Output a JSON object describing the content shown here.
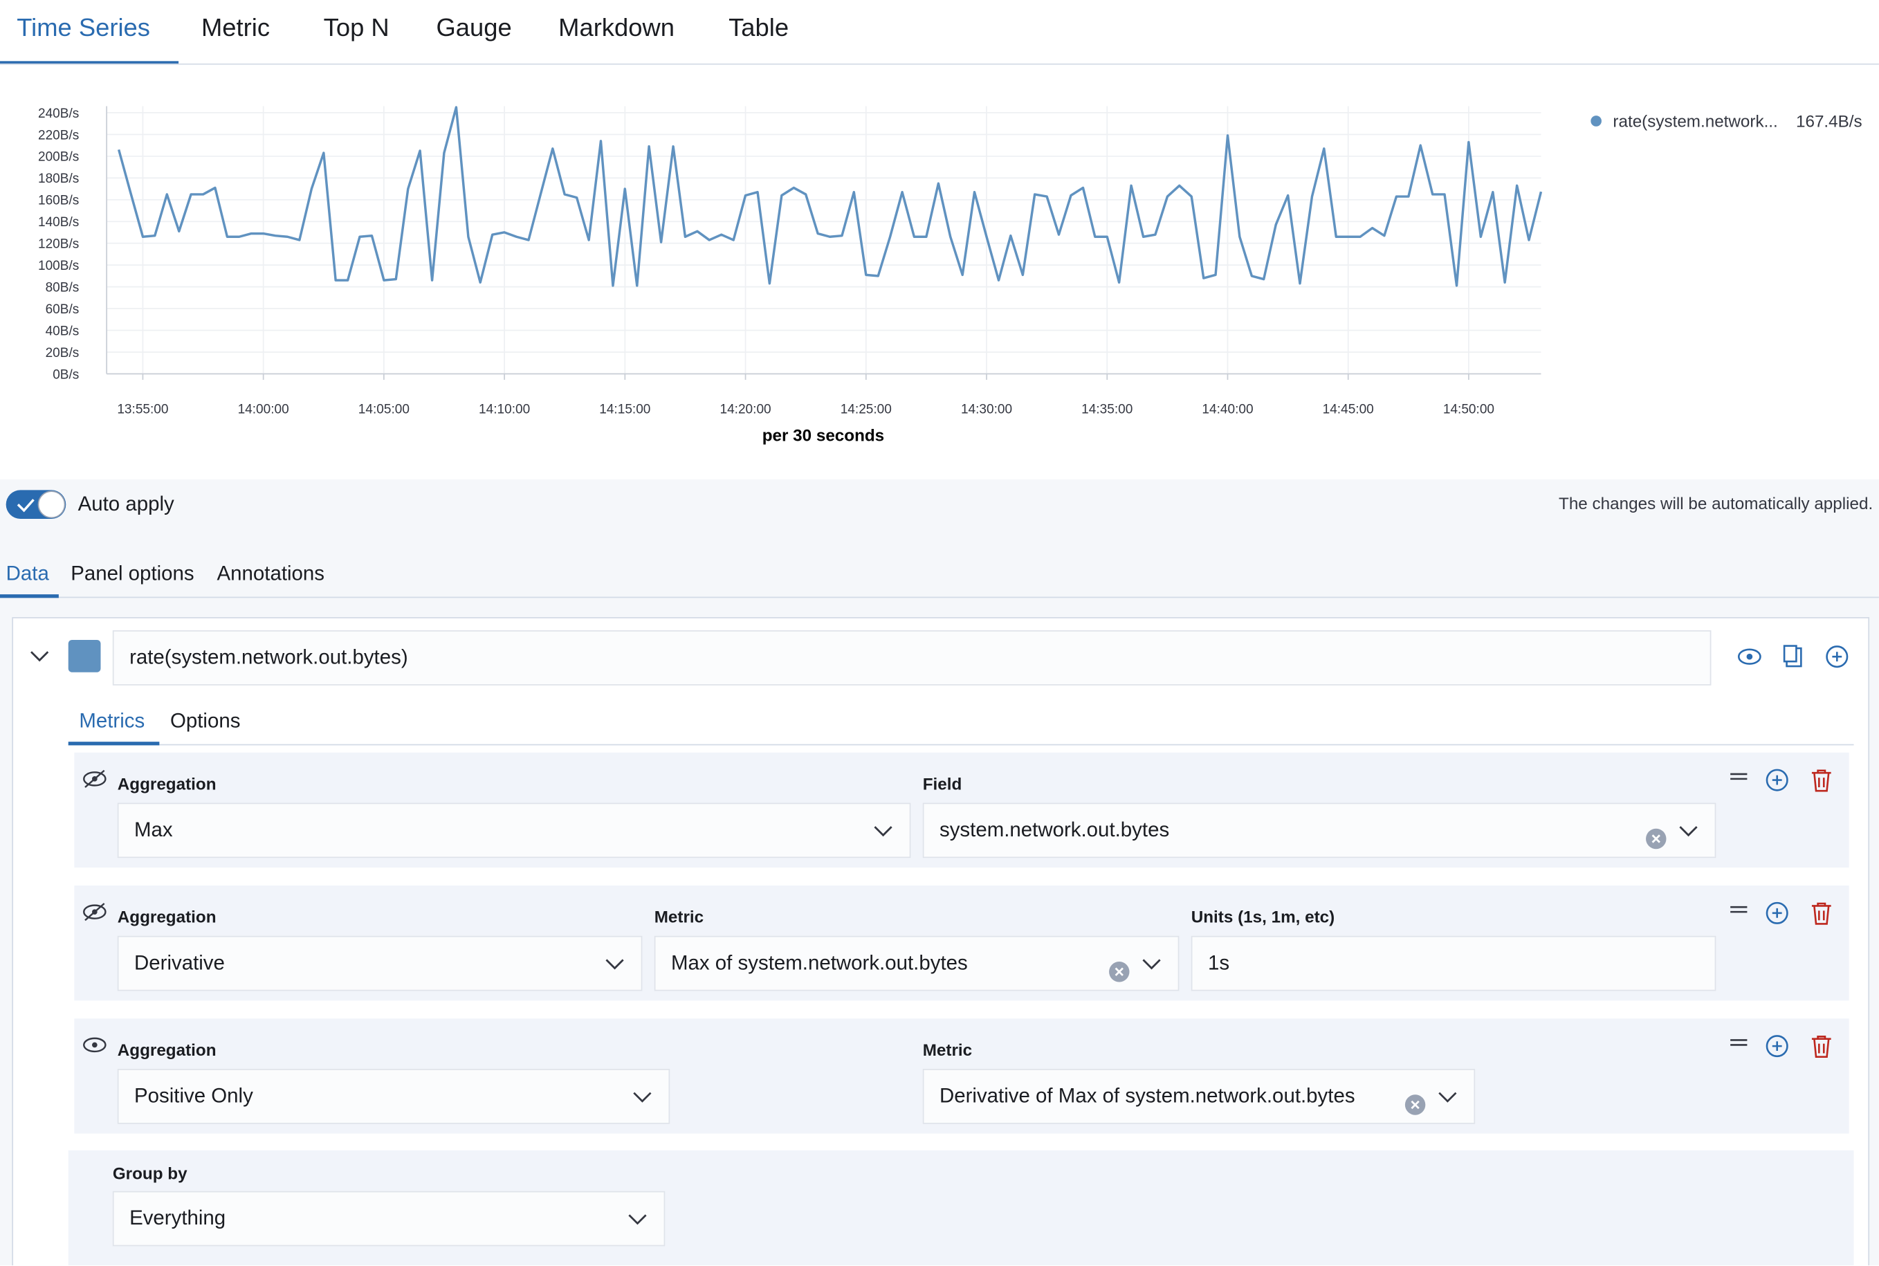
{
  "tabs": [
    "Time Series",
    "Metric",
    "Top N",
    "Gauge",
    "Markdown",
    "Table"
  ],
  "chart_data": {
    "type": "line",
    "xlabel": "per 30 seconds",
    "x": [
      "13:54:00",
      "13:54:30",
      "13:55:00",
      "13:55:30",
      "13:56:00",
      "13:56:30",
      "13:57:00",
      "13:57:30",
      "13:58:00",
      "13:58:30",
      "13:59:00",
      "13:59:30",
      "14:00:00",
      "14:00:30",
      "14:01:00",
      "14:01:30",
      "14:02:00",
      "14:02:30",
      "14:03:00",
      "14:03:30",
      "14:04:00",
      "14:04:30",
      "14:05:00",
      "14:05:30",
      "14:06:00",
      "14:06:30",
      "14:07:00",
      "14:07:30",
      "14:08:00",
      "14:08:30",
      "14:09:00",
      "14:09:30",
      "14:10:00",
      "14:10:30",
      "14:11:00",
      "14:11:30",
      "14:12:00",
      "14:12:30",
      "14:13:00",
      "14:13:30",
      "14:14:00",
      "14:14:30",
      "14:15:00",
      "14:15:30",
      "14:16:00",
      "14:16:30",
      "14:17:00",
      "14:17:30",
      "14:18:00",
      "14:18:30",
      "14:19:00",
      "14:19:30",
      "14:20:00",
      "14:20:30",
      "14:21:00",
      "14:21:30",
      "14:22:00",
      "14:22:30",
      "14:23:00",
      "14:23:30",
      "14:24:00",
      "14:24:30",
      "14:25:00",
      "14:25:30",
      "14:26:00",
      "14:26:30",
      "14:27:00",
      "14:27:30",
      "14:28:00",
      "14:28:30",
      "14:29:00",
      "14:29:30",
      "14:30:00",
      "14:30:30",
      "14:31:00",
      "14:31:30",
      "14:32:00",
      "14:32:30",
      "14:33:00",
      "14:33:30",
      "14:34:00",
      "14:34:30",
      "14:35:00",
      "14:35:30",
      "14:36:00",
      "14:36:30",
      "14:37:00",
      "14:37:30",
      "14:38:00",
      "14:38:30",
      "14:39:00",
      "14:39:30",
      "14:40:00",
      "14:40:30",
      "14:41:00",
      "14:41:30",
      "14:42:00",
      "14:42:30",
      "14:43:00",
      "14:43:30",
      "14:44:00",
      "14:44:30",
      "14:45:00",
      "14:45:30",
      "14:46:00",
      "14:46:30",
      "14:47:00",
      "14:47:30",
      "14:48:00",
      "14:48:30",
      "14:49:00",
      "14:49:30",
      "14:50:00",
      "14:50:30",
      "14:51:00",
      "14:51:30",
      "14:52:00",
      "14:52:30",
      "14:53:00"
    ],
    "series": [
      {
        "name": "rate(system.network...",
        "legend_value_label": "167.4B/s",
        "color": "#6092c0",
        "values": [
          206,
          166,
          126,
          127,
          165,
          131,
          165,
          165,
          171,
          126,
          126,
          129,
          129,
          127,
          126,
          123,
          170,
          203,
          86,
          86,
          126,
          127,
          86,
          87,
          170,
          205,
          86,
          203,
          245,
          126,
          84,
          128,
          130,
          126,
          123,
          165,
          207,
          165,
          162,
          123,
          214,
          81,
          170,
          81,
          209,
          121,
          209,
          126,
          131,
          123,
          128,
          123,
          164,
          167,
          83,
          164,
          171,
          165,
          129,
          126,
          127,
          167,
          91,
          90,
          126,
          167,
          126,
          126,
          175,
          126,
          91,
          167,
          126,
          86,
          127,
          91,
          165,
          163,
          128,
          164,
          171,
          126,
          126,
          84,
          173,
          126,
          128,
          163,
          173,
          163,
          88,
          91,
          219,
          126,
          90,
          87,
          137,
          164,
          83,
          163,
          207,
          126,
          126,
          126,
          134,
          127,
          163,
          163,
          210,
          165,
          165,
          81,
          213,
          126,
          167,
          84,
          173,
          123,
          167.4
        ]
      }
    ],
    "xlim": [
      "13:53:30",
      "14:53:00"
    ],
    "xticks": [
      "13:55:00",
      "14:00:00",
      "14:05:00",
      "14:10:00",
      "14:15:00",
      "14:20:00",
      "14:25:00",
      "14:30:00",
      "14:35:00",
      "14:40:00",
      "14:45:00",
      "14:50:00"
    ],
    "ylim": [
      0,
      246
    ],
    "yticks": [
      {
        "value": 0,
        "label": "0B/s"
      },
      {
        "value": 20,
        "label": "20B/s"
      },
      {
        "value": 40,
        "label": "40B/s"
      },
      {
        "value": 60,
        "label": "60B/s"
      },
      {
        "value": 80,
        "label": "80B/s"
      },
      {
        "value": 100,
        "label": "100B/s"
      },
      {
        "value": 120,
        "label": "120B/s"
      },
      {
        "value": 140,
        "label": "140B/s"
      },
      {
        "value": 160,
        "label": "160B/s"
      },
      {
        "value": 180,
        "label": "180B/s"
      },
      {
        "value": 200,
        "label": "200B/s"
      },
      {
        "value": 220,
        "label": "220B/s"
      },
      {
        "value": 240,
        "label": "240B/s"
      }
    ],
    "grid": true,
    "legend": "top-right"
  },
  "auto_apply": {
    "label": "Auto apply",
    "note": "The changes will be automatically applied."
  },
  "panel_tabs": [
    "Data",
    "Panel options",
    "Annotations"
  ],
  "series_label": "rate(system.network.out.bytes)",
  "series_tabs": [
    "Metrics",
    "Options"
  ],
  "metrics": [
    {
      "fields": [
        {
          "label": "Aggregation",
          "value": "Max"
        },
        {
          "label": "Field",
          "value": "system.network.out.bytes"
        }
      ]
    },
    {
      "fields": [
        {
          "label": "Aggregation",
          "value": "Derivative"
        },
        {
          "label": "Metric",
          "value": "Max of system.network.out.bytes"
        },
        {
          "label": "Units (1s, 1m, etc)",
          "value": "1s"
        }
      ]
    },
    {
      "fields": [
        {
          "label": "Aggregation",
          "value": "Positive Only"
        },
        {
          "label": "Metric",
          "value": "Derivative of Max of system.network.out.bytes"
        }
      ]
    }
  ],
  "group_by": {
    "label": "Group by",
    "value": "Everything"
  }
}
